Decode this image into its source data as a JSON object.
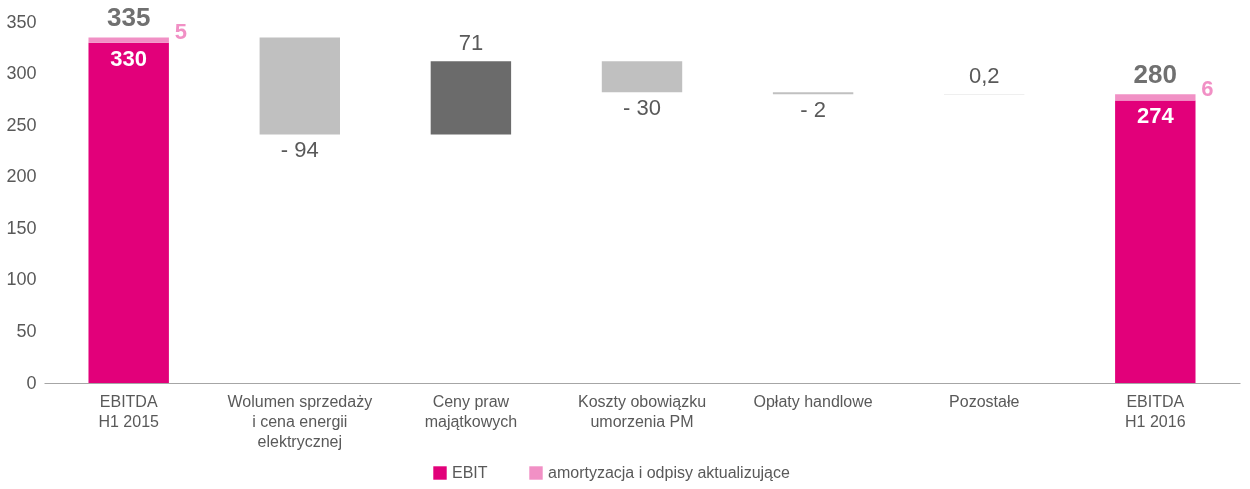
{
  "chart_data": {
    "type": "bar",
    "stacked": true,
    "categories": [
      "EBITDA\nH1 2015",
      "Wolumen sprzedaży\ni cena energii\nelektrycznej",
      "Ceny praw\nmajątkowych",
      "Koszty obowiązku\numorzenia PM",
      "Opłaty handlowe",
      "Pozostałe",
      "EBITDA\nH1 2016"
    ],
    "series": [
      {
        "name": "EBIT",
        "color": "#e2007a",
        "values": [
          330,
          null,
          null,
          null,
          null,
          null,
          274
        ],
        "value_labels": [
          "330",
          null,
          null,
          null,
          null,
          null,
          "274"
        ]
      },
      {
        "name": "amortyzacja i odpisy aktualizujące",
        "color": "#f190c5",
        "values": [
          5,
          null,
          null,
          null,
          null,
          null,
          6
        ],
        "value_labels": [
          "5",
          null,
          null,
          null,
          null,
          null,
          "6"
        ]
      },
      {
        "values": [
          null,
          -94,
          71,
          -30,
          -2,
          0.2,
          null
        ],
        "base": [
          null,
          335,
          241,
          312,
          282,
          280,
          null
        ],
        "colors": [
          null,
          "#c0c0c0",
          "#6b6b6b",
          "#c0c0c0",
          "#c0c0c0",
          "#c0c0c0",
          null
        ],
        "value_labels": [
          null,
          "- 94",
          "71",
          "- 30",
          "- 2",
          "0,2",
          null
        ]
      }
    ],
    "totals": [
      "335",
      null,
      null,
      null,
      null,
      null,
      "280"
    ],
    "ylim": [
      0,
      350
    ],
    "yticks": [
      0,
      50,
      100,
      150,
      200,
      250,
      300,
      350
    ],
    "grid": false,
    "legend": "bottom"
  }
}
